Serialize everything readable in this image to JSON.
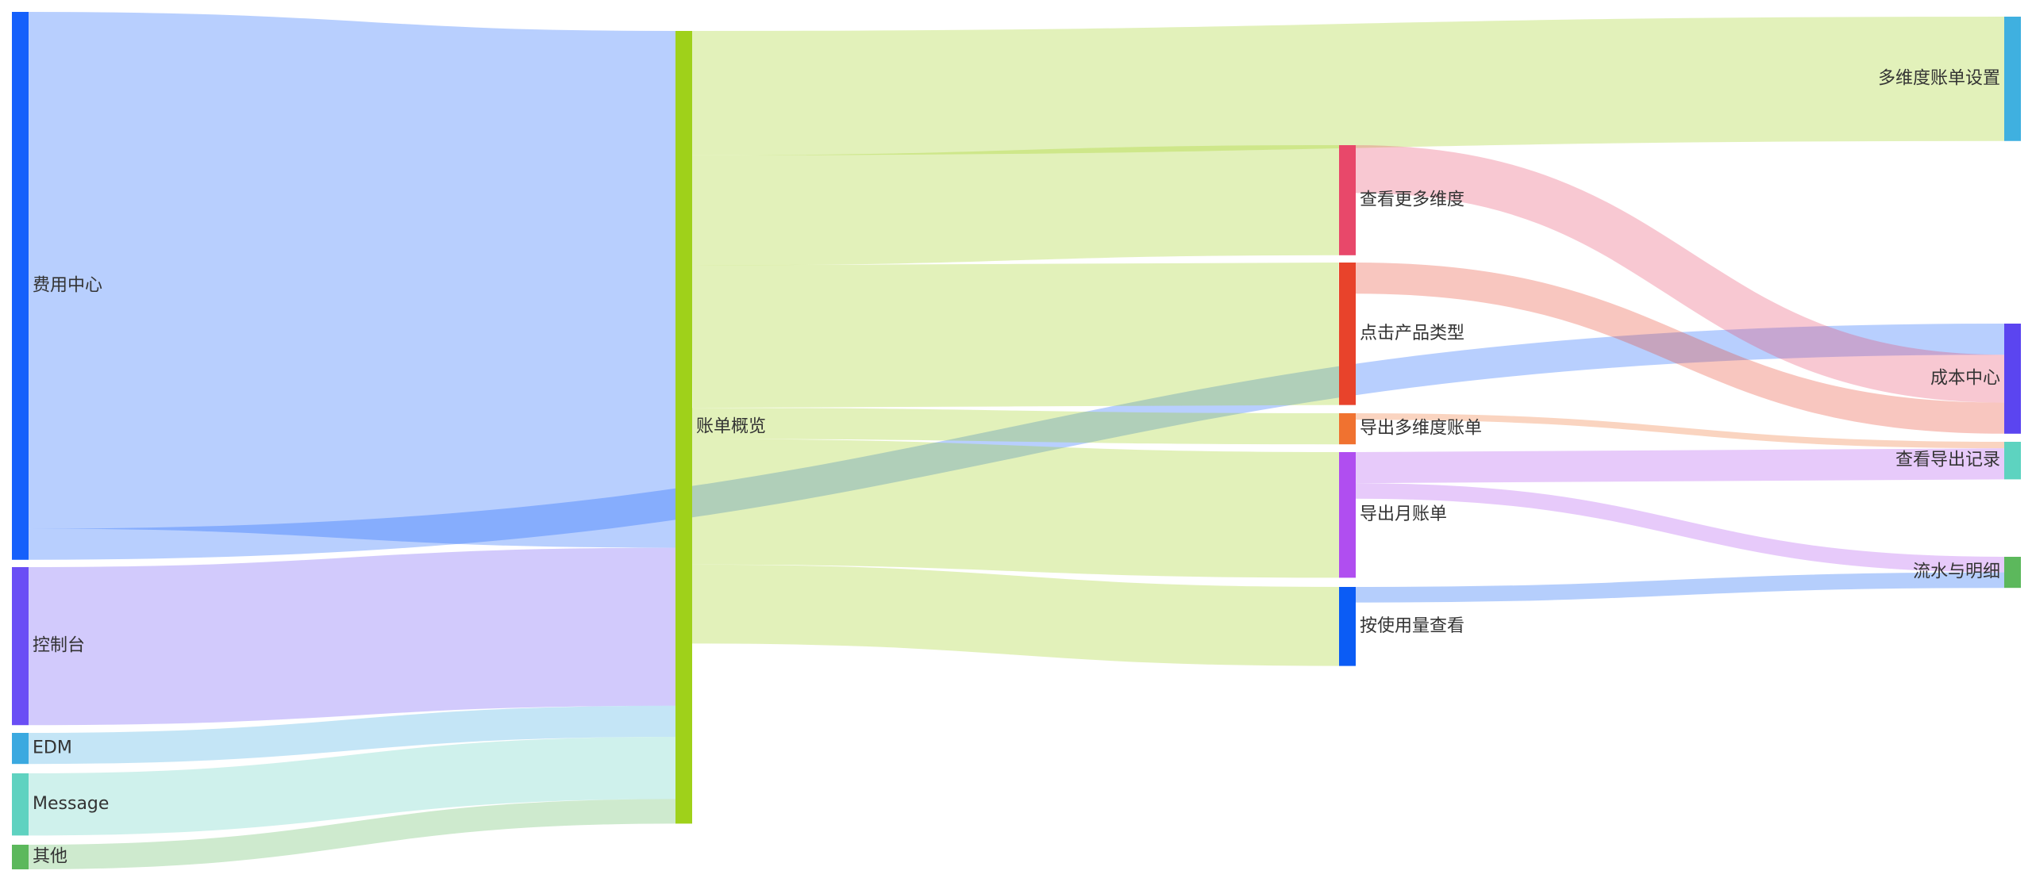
{
  "chart_data": {
    "type": "sankey",
    "nodes": [
      {
        "name": "费用中心",
        "color": "#1560fb"
      },
      {
        "name": "控制台",
        "color": "#6a4ef5"
      },
      {
        "name": "EDM",
        "color": "#3ba9e0"
      },
      {
        "name": "Message",
        "color": "#5fd2c0"
      },
      {
        "name": "其他",
        "color": "#5cb85c"
      },
      {
        "name": "账单概览",
        "color": "#9fd11a"
      },
      {
        "name": "多维度账单设置",
        "color": "#3fb0e0"
      },
      {
        "name": "查看更多维度",
        "color": "#e8486a"
      },
      {
        "name": "点击产品类型",
        "color": "#e8432b"
      },
      {
        "name": "导出多维度账单",
        "color": "#f07230"
      },
      {
        "name": "导出月账单",
        "color": "#b04ef0"
      },
      {
        "name": "按使用量查看",
        "color": "#0b5cf5"
      },
      {
        "name": "成本中心",
        "color": "#5b45f0"
      },
      {
        "name": "查看导出记录",
        "color": "#5dd3c0"
      },
      {
        "name": "流水与明细",
        "color": "#5cb85c"
      }
    ],
    "links": [
      {
        "source": "费用中心",
        "target": "账单概览",
        "value": 399
      },
      {
        "source": "控制台",
        "target": "账单概览",
        "value": 122
      },
      {
        "source": "EDM",
        "target": "账单概览",
        "value": 24
      },
      {
        "source": "Message",
        "target": "账单概览",
        "value": 48
      },
      {
        "source": "其他",
        "target": "账单概览",
        "value": 19
      },
      {
        "source": "费用中心",
        "target": "成本中心",
        "value": 24
      },
      {
        "source": "账单概览",
        "target": "多维度账单设置",
        "value": 96
      },
      {
        "source": "账单概览",
        "target": "查看更多维度",
        "value": 85
      },
      {
        "source": "账单概览",
        "target": "点击产品类型",
        "value": 110
      },
      {
        "source": "账单概览",
        "target": "导出多维度账单",
        "value": 24
      },
      {
        "source": "账单概览",
        "target": "导出月账单",
        "value": 97
      },
      {
        "source": "账单概览",
        "target": "按使用量查看",
        "value": 61
      },
      {
        "source": "查看更多维度",
        "target": "成本中心",
        "value": 37
      },
      {
        "source": "点击产品类型",
        "target": "成本中心",
        "value": 24
      },
      {
        "source": "导出多维度账单",
        "target": "查看导出记录",
        "value": 5
      },
      {
        "source": "导出月账单",
        "target": "查看导出记录",
        "value": 24
      },
      {
        "source": "导出月账单",
        "target": "流水与明细",
        "value": 12
      },
      {
        "source": "按使用量查看",
        "target": "流水与明细",
        "value": 12
      }
    ]
  }
}
